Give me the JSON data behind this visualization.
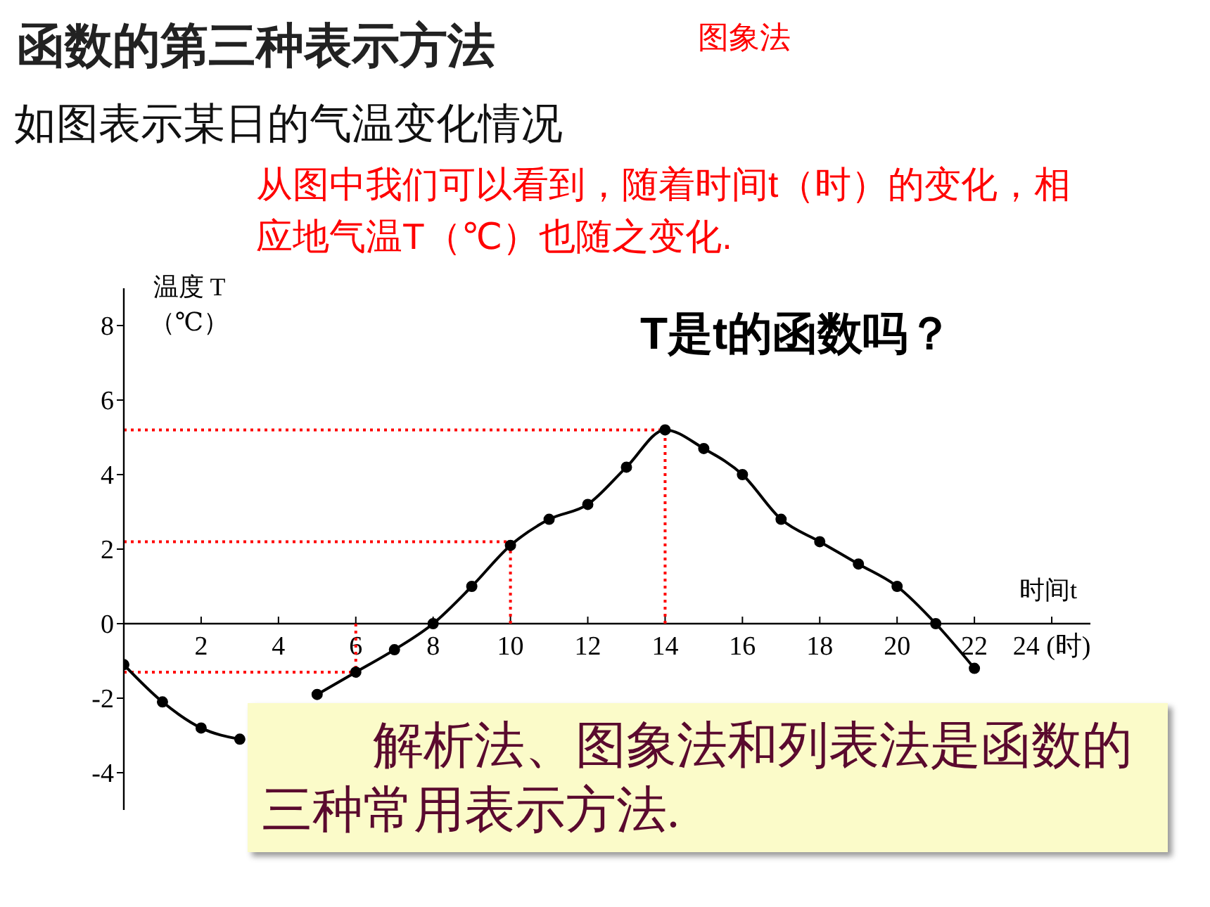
{
  "chart_data": {
    "type": "line",
    "title": "函数的第三种表示方法",
    "subtitle": "图象法",
    "annotations": [
      "如图表示某日的气温变化情况",
      "从图中我们可以看到，随着时间t（时）的变化，相应地气温T（℃）也随之变化.",
      "T是t的函数吗？",
      "解析法、图象法和列表法是函数的三种常用表示方法."
    ],
    "xlabel": "时间t",
    "ylabel": "温度 T （℃）",
    "x": [
      0,
      1,
      2,
      3,
      4,
      5,
      6,
      7,
      8,
      9,
      10,
      11,
      12,
      13,
      14,
      15,
      16,
      17,
      18,
      19,
      20,
      21,
      22
    ],
    "series": [
      {
        "color": "#000000",
        "values": [
          -1.1,
          -2.1,
          -2.8,
          -3.1,
          null,
          -1.9,
          -1.3,
          -0.7,
          0,
          1.0,
          2.1,
          2.8,
          3.2,
          4.2,
          5.2,
          4.7,
          4.0,
          2.8,
          2.2,
          1.6,
          1.0,
          0,
          -1.2
        ]
      }
    ],
    "xlim": [
      0,
      25
    ],
    "xticks": [
      2,
      4,
      6,
      8,
      10,
      12,
      14,
      16,
      18,
      20,
      22,
      {
        "value": 24,
        "label": "24 (时)"
      }
    ],
    "ylim": [
      -5,
      9
    ],
    "yticks": [
      -4,
      -2,
      0,
      2,
      4,
      6,
      8
    ],
    "ref_lines": [
      {
        "axis": "y",
        "value": 5.2,
        "color": "#ff0000",
        "line_style": "dotted"
      },
      {
        "axis": "x",
        "value": 14,
        "color": "#ff0000",
        "line_style": "dotted"
      },
      {
        "axis": "y",
        "value": 2.2,
        "color": "#ff0000",
        "line_style": "dotted"
      },
      {
        "axis": "x",
        "value": 10,
        "color": "#ff0000",
        "line_style": "dotted"
      },
      {
        "axis": "y",
        "value": -1.3,
        "color": "#ff0000",
        "line_style": "dotted"
      },
      {
        "axis": "x",
        "value": 6,
        "color": "#ff0000",
        "line_style": "dotted"
      }
    ],
    "grid": false,
    "marker": "circle",
    "line_style": "solid"
  }
}
